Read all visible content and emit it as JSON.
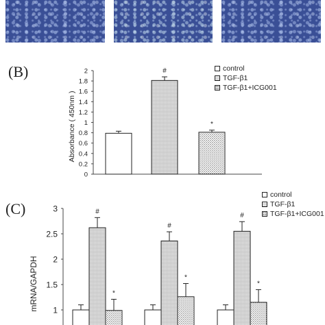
{
  "panel_b_label": "(B)",
  "panel_c_label": "(C)",
  "legend_b": [
    "control",
    "TGF-β1",
    "TGF-β1+ICG001"
  ],
  "legend_c": [
    "control",
    "TGF-β1",
    "TGF-β1+ICG001"
  ],
  "colors": {
    "control": "#ffffff",
    "tgf": "#d0d0d0",
    "icg": "#e4e4e4",
    "micro": "#3a4f96"
  },
  "chart_data": [
    {
      "type": "bar",
      "ylabel": "Absorbance ( 450nm )",
      "ylim": [
        0,
        2
      ],
      "yticks": [
        "0",
        "0.2",
        "0.4",
        "0.6",
        "0.8",
        "1",
        "1.2",
        "1.4",
        "1.6",
        "1.8",
        "2"
      ],
      "categories": [
        "control",
        "TGF-β1",
        "TGF-β1+ICG001"
      ],
      "values": [
        0.79,
        1.81,
        0.81
      ],
      "errors": [
        0.04,
        0.07,
        0.04
      ],
      "annotations": [
        "",
        "#",
        "*"
      ]
    },
    {
      "type": "bar",
      "ylabel": "mRNA/GAPDH",
      "ylim_visible": [
        0.7,
        3
      ],
      "yticks": [
        "1",
        "1.5",
        "2",
        "2.5",
        "3"
      ],
      "groups": 3,
      "series": [
        {
          "name": "control",
          "values": [
            1.0,
            1.0,
            1.0
          ],
          "errors": [
            0.1,
            0.1,
            0.1
          ],
          "annotations": [
            "",
            "",
            ""
          ]
        },
        {
          "name": "TGF-β1",
          "values": [
            2.62,
            2.36,
            2.55
          ],
          "errors": [
            0.2,
            0.18,
            0.19
          ],
          "annotations": [
            "#",
            "#",
            "#"
          ]
        },
        {
          "name": "TGF-β1+ICG001",
          "values": [
            0.99,
            1.26,
            1.15
          ],
          "errors": [
            0.22,
            0.26,
            0.25
          ],
          "annotations": [
            "*",
            "*",
            "*"
          ]
        }
      ]
    }
  ]
}
